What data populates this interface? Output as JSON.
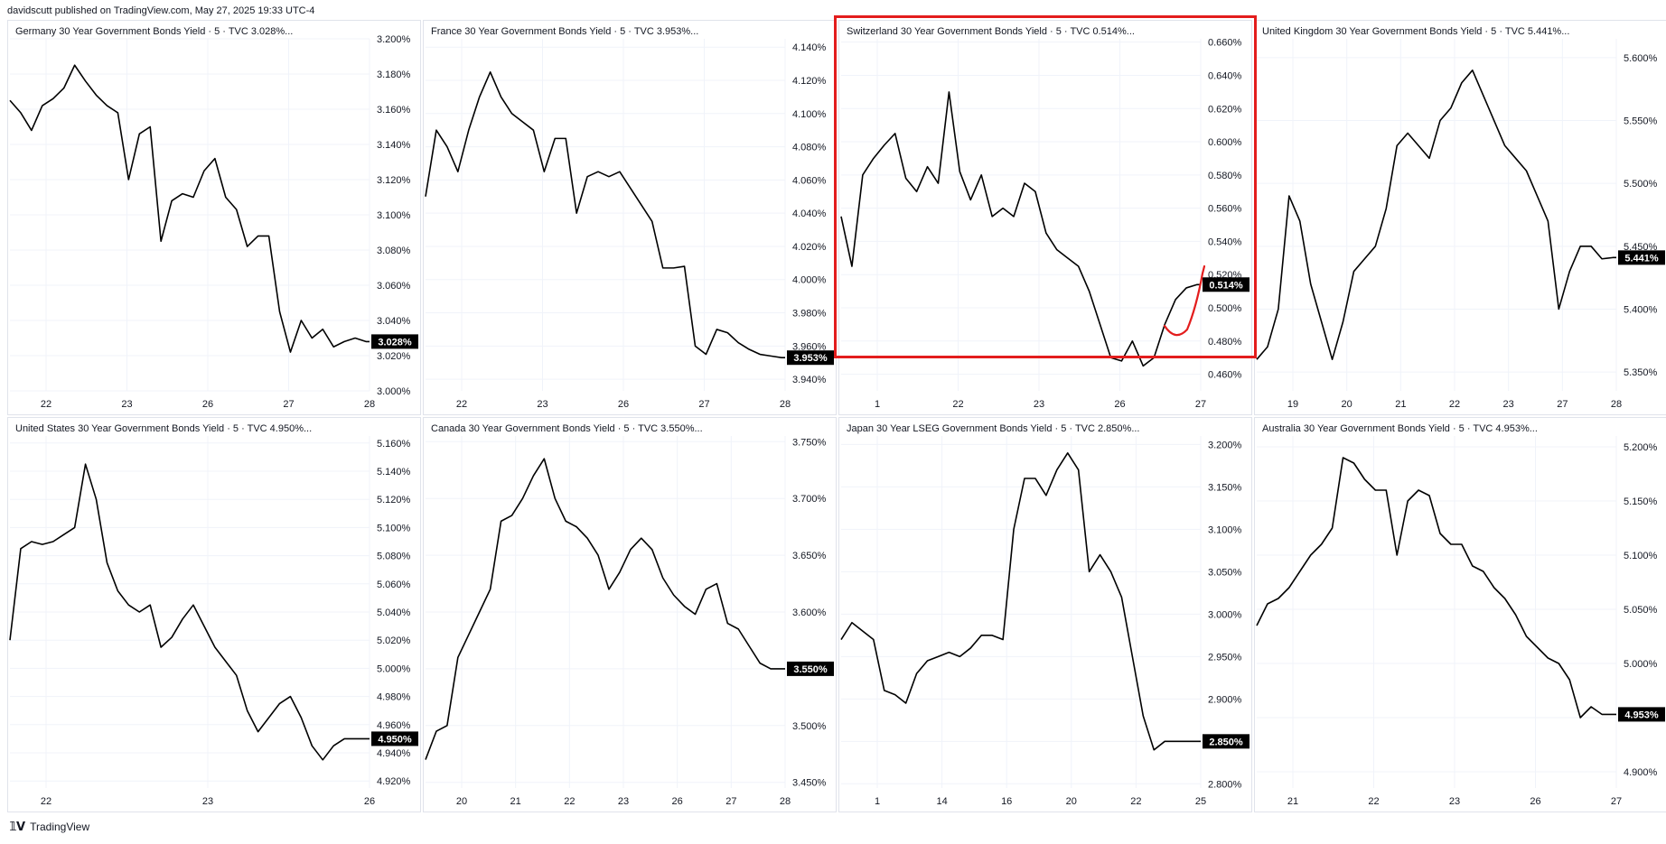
{
  "header": {
    "published": "davidscutt published on TradingView.com, May 27, 2025 19:33 UTC-4"
  },
  "footer": {
    "logo_text": "TradingView"
  },
  "colors": {
    "line": "#000000",
    "grid": "#f0f3fa",
    "axis_text": "#131722",
    "price_tag_bg": "#000000",
    "price_tag_text": "#ffffff",
    "highlight": "#e31d1d",
    "annotation": "#e31d1d"
  },
  "chart_data": [
    {
      "type": "line",
      "title": "Germany 30 Year Government Bonds Yield · 5 · TVC  3.028%...",
      "last_value_label": "3.028%",
      "last_value": 3.028,
      "y_ticks": [
        "3.200%",
        "3.180%",
        "3.160%",
        "3.140%",
        "3.120%",
        "3.100%",
        "3.080%",
        "3.060%",
        "3.040%",
        "3.020%",
        "3.000%"
      ],
      "ylim": [
        3.0,
        3.2
      ],
      "x_ticks": [
        "22",
        "23",
        "26",
        "27",
        "28"
      ],
      "series": [
        {
          "x": [
            0,
            3,
            6,
            9,
            12,
            15,
            18,
            21,
            24,
            27,
            30,
            33,
            36,
            39,
            42,
            45,
            48,
            51,
            54,
            57,
            60,
            63,
            66,
            69,
            72,
            75,
            78,
            81,
            84,
            87,
            90,
            93,
            96,
            99,
            100
          ],
          "values": [
            3.165,
            3.158,
            3.148,
            3.162,
            3.166,
            3.172,
            3.185,
            3.176,
            3.168,
            3.162,
            3.158,
            3.12,
            3.146,
            3.15,
            3.085,
            3.108,
            3.112,
            3.11,
            3.125,
            3.132,
            3.11,
            3.103,
            3.082,
            3.088,
            3.088,
            3.045,
            3.022,
            3.04,
            3.03,
            3.035,
            3.025,
            3.028,
            3.03,
            3.028,
            3.028
          ]
        }
      ]
    },
    {
      "type": "line",
      "title": "France 30 Year Government Bonds Yield · 5 · TVC  3.953%...",
      "last_value_label": "3.953%",
      "last_value": 3.953,
      "y_ticks": [
        "4.140%",
        "4.120%",
        "4.100%",
        "4.080%",
        "4.060%",
        "4.040%",
        "4.020%",
        "4.000%",
        "3.980%",
        "3.960%",
        "3.940%"
      ],
      "ylim": [
        3.933,
        4.145
      ],
      "x_ticks": [
        "22",
        "23",
        "26",
        "27",
        "28"
      ],
      "series": [
        {
          "x": [
            0,
            3,
            6,
            9,
            12,
            15,
            18,
            21,
            24,
            27,
            30,
            33,
            36,
            39,
            42,
            45,
            48,
            51,
            54,
            57,
            60,
            63,
            66,
            69,
            72,
            75,
            78,
            81,
            84,
            87,
            90,
            93,
            96,
            99,
            100
          ],
          "values": [
            4.05,
            4.09,
            4.08,
            4.065,
            4.09,
            4.11,
            4.125,
            4.11,
            4.1,
            4.095,
            4.09,
            4.065,
            4.085,
            4.085,
            4.04,
            4.062,
            4.065,
            4.062,
            4.065,
            4.055,
            4.045,
            4.035,
            4.007,
            4.007,
            4.008,
            3.96,
            3.955,
            3.97,
            3.968,
            3.962,
            3.958,
            3.955,
            3.954,
            3.953,
            3.953
          ]
        }
      ]
    },
    {
      "type": "line",
      "title": "Switzerland 30 Year Government Bonds Yield · 5 · TVC  0.514%...",
      "last_value_label": "0.514%",
      "last_value": 0.514,
      "y_ticks": [
        "0.660%",
        "0.640%",
        "0.620%",
        "0.600%",
        "0.580%",
        "0.560%",
        "0.540%",
        "0.520%",
        "0.500%",
        "0.480%",
        "0.460%"
      ],
      "ylim": [
        0.45,
        0.662
      ],
      "x_ticks": [
        "1",
        "22",
        "23",
        "26",
        "27"
      ],
      "series": [
        {
          "x": [
            0,
            3,
            6,
            9,
            12,
            15,
            18,
            21,
            24,
            27,
            30,
            33,
            36,
            39,
            42,
            45,
            48,
            51,
            54,
            57,
            60,
            63,
            66,
            69,
            72,
            75,
            78,
            81,
            84,
            87,
            90,
            93,
            96,
            99,
            100
          ],
          "values": [
            0.555,
            0.525,
            0.58,
            0.59,
            0.598,
            0.605,
            0.578,
            0.57,
            0.585,
            0.575,
            0.63,
            0.582,
            0.565,
            0.58,
            0.555,
            0.56,
            0.555,
            0.575,
            0.57,
            0.545,
            0.535,
            0.53,
            0.525,
            0.51,
            0.49,
            0.47,
            0.468,
            0.48,
            0.465,
            0.47,
            0.49,
            0.505,
            0.512,
            0.514,
            0.514
          ]
        }
      ]
    },
    {
      "type": "line",
      "title": "United Kingdom 30 Year Government Bonds Yield · 5 · TVC  5.441%...",
      "last_value_label": "5.441%",
      "last_value": 5.441,
      "y_ticks": [
        "5.600%",
        "5.550%",
        "5.500%",
        "5.450%",
        "5.400%",
        "5.350%"
      ],
      "ylim": [
        5.335,
        5.615
      ],
      "x_ticks": [
        "19",
        "20",
        "21",
        "22",
        "23",
        "27",
        "28"
      ],
      "series": [
        {
          "x": [
            0,
            3,
            6,
            9,
            12,
            15,
            18,
            21,
            24,
            27,
            30,
            33,
            36,
            39,
            42,
            45,
            48,
            51,
            54,
            57,
            60,
            63,
            66,
            69,
            72,
            75,
            78,
            81,
            84,
            87,
            90,
            93,
            96,
            99,
            100
          ],
          "values": [
            5.36,
            5.37,
            5.4,
            5.49,
            5.47,
            5.42,
            5.39,
            5.36,
            5.39,
            5.43,
            5.44,
            5.45,
            5.48,
            5.53,
            5.54,
            5.53,
            5.52,
            5.55,
            5.56,
            5.58,
            5.59,
            5.57,
            5.55,
            5.53,
            5.52,
            5.51,
            5.49,
            5.47,
            5.4,
            5.43,
            5.45,
            5.45,
            5.44,
            5.441,
            5.441
          ]
        }
      ]
    },
    {
      "type": "line",
      "title": "United States 30 Year Government Bonds Yield · 5 · TVC  4.950%...",
      "last_value_label": "4.950%",
      "last_value": 4.95,
      "y_ticks": [
        "5.160%",
        "5.140%",
        "5.120%",
        "5.100%",
        "5.080%",
        "5.060%",
        "5.040%",
        "5.020%",
        "5.000%",
        "4.980%",
        "4.960%",
        "4.940%",
        "4.920%"
      ],
      "ylim": [
        4.915,
        5.165
      ],
      "x_ticks": [
        "22",
        "23",
        "26"
      ],
      "series": [
        {
          "x": [
            0,
            3,
            6,
            9,
            12,
            15,
            18,
            21,
            24,
            27,
            30,
            33,
            36,
            39,
            42,
            45,
            48,
            51,
            54,
            57,
            60,
            63,
            66,
            69,
            72,
            75,
            78,
            81,
            84,
            87,
            90,
            93,
            96,
            99,
            100
          ],
          "values": [
            5.02,
            5.085,
            5.09,
            5.088,
            5.09,
            5.095,
            5.1,
            5.145,
            5.12,
            5.075,
            5.055,
            5.045,
            5.04,
            5.045,
            5.015,
            5.022,
            5.035,
            5.045,
            5.03,
            5.015,
            5.005,
            4.995,
            4.97,
            4.955,
            4.965,
            4.975,
            4.98,
            4.965,
            4.945,
            4.935,
            4.945,
            4.95,
            4.95,
            4.95,
            4.95
          ]
        }
      ]
    },
    {
      "type": "line",
      "title": "Canada 30 Year Government Bonds Yield · 5 · TVC  3.550%...",
      "last_value_label": "3.550%",
      "last_value": 3.55,
      "y_ticks": [
        "3.750%",
        "3.700%",
        "3.650%",
        "3.600%",
        "3.550%",
        "3.500%",
        "3.450%"
      ],
      "ylim": [
        3.445,
        3.755
      ],
      "x_ticks": [
        "20",
        "21",
        "22",
        "23",
        "26",
        "27",
        "28"
      ],
      "series": [
        {
          "x": [
            0,
            3,
            6,
            9,
            12,
            15,
            18,
            21,
            24,
            27,
            30,
            33,
            36,
            39,
            42,
            45,
            48,
            51,
            54,
            57,
            60,
            63,
            66,
            69,
            72,
            75,
            78,
            81,
            84,
            87,
            90,
            93,
            96,
            99,
            100
          ],
          "values": [
            3.47,
            3.495,
            3.5,
            3.56,
            3.58,
            3.6,
            3.62,
            3.68,
            3.685,
            3.7,
            3.72,
            3.735,
            3.7,
            3.68,
            3.675,
            3.665,
            3.65,
            3.62,
            3.635,
            3.655,
            3.665,
            3.655,
            3.63,
            3.615,
            3.605,
            3.598,
            3.62,
            3.625,
            3.59,
            3.585,
            3.57,
            3.555,
            3.55,
            3.55,
            3.55
          ]
        }
      ]
    },
    {
      "type": "line",
      "title": "Japan 30 Year LSEG Government Bonds Yield · 5 · TVC  2.850%...",
      "last_value_label": "2.850%",
      "last_value": 2.85,
      "y_ticks": [
        "3.200%",
        "3.150%",
        "3.100%",
        "3.050%",
        "3.000%",
        "2.950%",
        "2.900%",
        "2.850%",
        "2.800%"
      ],
      "ylim": [
        2.795,
        3.21
      ],
      "x_ticks": [
        "1",
        "14",
        "16",
        "20",
        "22",
        "25"
      ],
      "series": [
        {
          "x": [
            0,
            3,
            6,
            9,
            12,
            15,
            18,
            21,
            24,
            27,
            30,
            33,
            36,
            39,
            42,
            45,
            48,
            51,
            54,
            57,
            60,
            63,
            66,
            69,
            72,
            75,
            78,
            81,
            84,
            87,
            90,
            93,
            96,
            99,
            100
          ],
          "values": [
            2.97,
            2.99,
            2.98,
            2.97,
            2.91,
            2.905,
            2.895,
            2.93,
            2.945,
            2.95,
            2.955,
            2.95,
            2.96,
            2.975,
            2.975,
            2.97,
            3.1,
            3.16,
            3.16,
            3.14,
            3.17,
            3.19,
            3.17,
            3.05,
            3.07,
            3.05,
            3.02,
            2.95,
            2.88,
            2.84,
            2.85,
            2.85,
            2.85,
            2.85,
            2.85
          ]
        }
      ]
    },
    {
      "type": "line",
      "title": "Australia 30 Year Government Bonds Yield · 5 · TVC  4.953%...",
      "last_value_label": "4.953%",
      "last_value": 4.953,
      "y_ticks": [
        "5.200%",
        "5.150%",
        "5.100%",
        "5.050%",
        "5.000%",
        "4.950%",
        "4.900%"
      ],
      "ylim": [
        4.885,
        5.21
      ],
      "x_ticks": [
        "21",
        "22",
        "23",
        "26",
        "27"
      ],
      "series": [
        {
          "x": [
            0,
            3,
            6,
            9,
            12,
            15,
            18,
            21,
            24,
            27,
            30,
            33,
            36,
            39,
            42,
            45,
            48,
            51,
            54,
            57,
            60,
            63,
            66,
            69,
            72,
            75,
            78,
            81,
            84,
            87,
            90,
            93,
            96,
            99,
            100
          ],
          "values": [
            5.035,
            5.055,
            5.06,
            5.07,
            5.085,
            5.1,
            5.11,
            5.125,
            5.19,
            5.185,
            5.17,
            5.16,
            5.16,
            5.1,
            5.15,
            5.16,
            5.155,
            5.12,
            5.11,
            5.11,
            5.09,
            5.085,
            5.07,
            5.06,
            5.045,
            5.025,
            5.015,
            5.005,
            5.0,
            4.985,
            4.95,
            4.96,
            4.953,
            4.953,
            4.953
          ]
        }
      ]
    }
  ]
}
